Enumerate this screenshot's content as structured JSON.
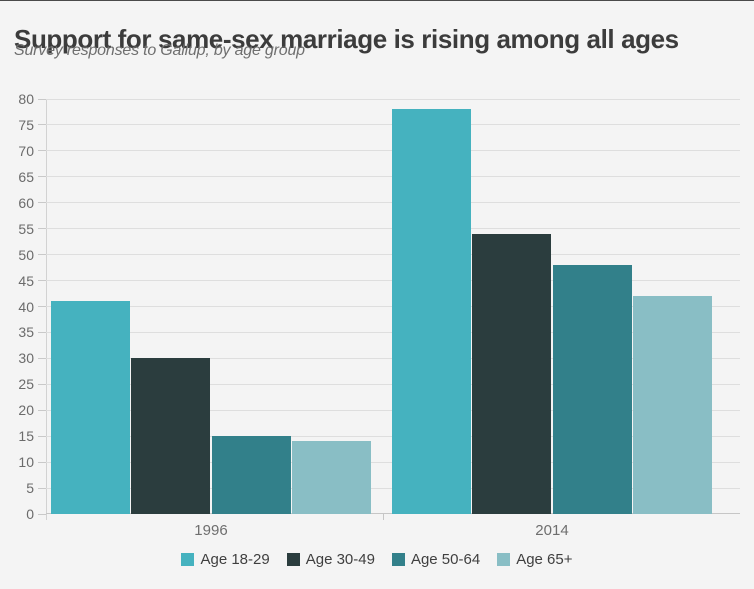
{
  "header": {
    "title": "Support for same-sex marriage is rising among all ages",
    "subtitle": "Survey responses to Gallup, by age group"
  },
  "chart_data": {
    "type": "bar",
    "categories": [
      "1996",
      "2014"
    ],
    "series": [
      {
        "name": "Age 18-29",
        "color": "#45b2bf",
        "values": [
          41,
          78
        ]
      },
      {
        "name": "Age 30-49",
        "color": "#2b3d3e",
        "values": [
          30,
          54
        ]
      },
      {
        "name": "Age 50-64",
        "color": "#32808a",
        "values": [
          15,
          48
        ]
      },
      {
        "name": "Age 65+",
        "color": "#89bec5",
        "values": [
          14,
          42
        ]
      }
    ],
    "title": "",
    "xlabel": "",
    "ylabel": "",
    "ylim": [
      0,
      80
    ],
    "ytick_step": 5,
    "grid": true,
    "legend_position": "bottom",
    "colors": {
      "background": "#f4f4f4",
      "gridline": "#dedede",
      "axis": "#c6c6c6",
      "title_text": "#3c3c3c",
      "subtitle_text": "#6f6f6f",
      "tick_text": "#6b6b6b"
    }
  }
}
